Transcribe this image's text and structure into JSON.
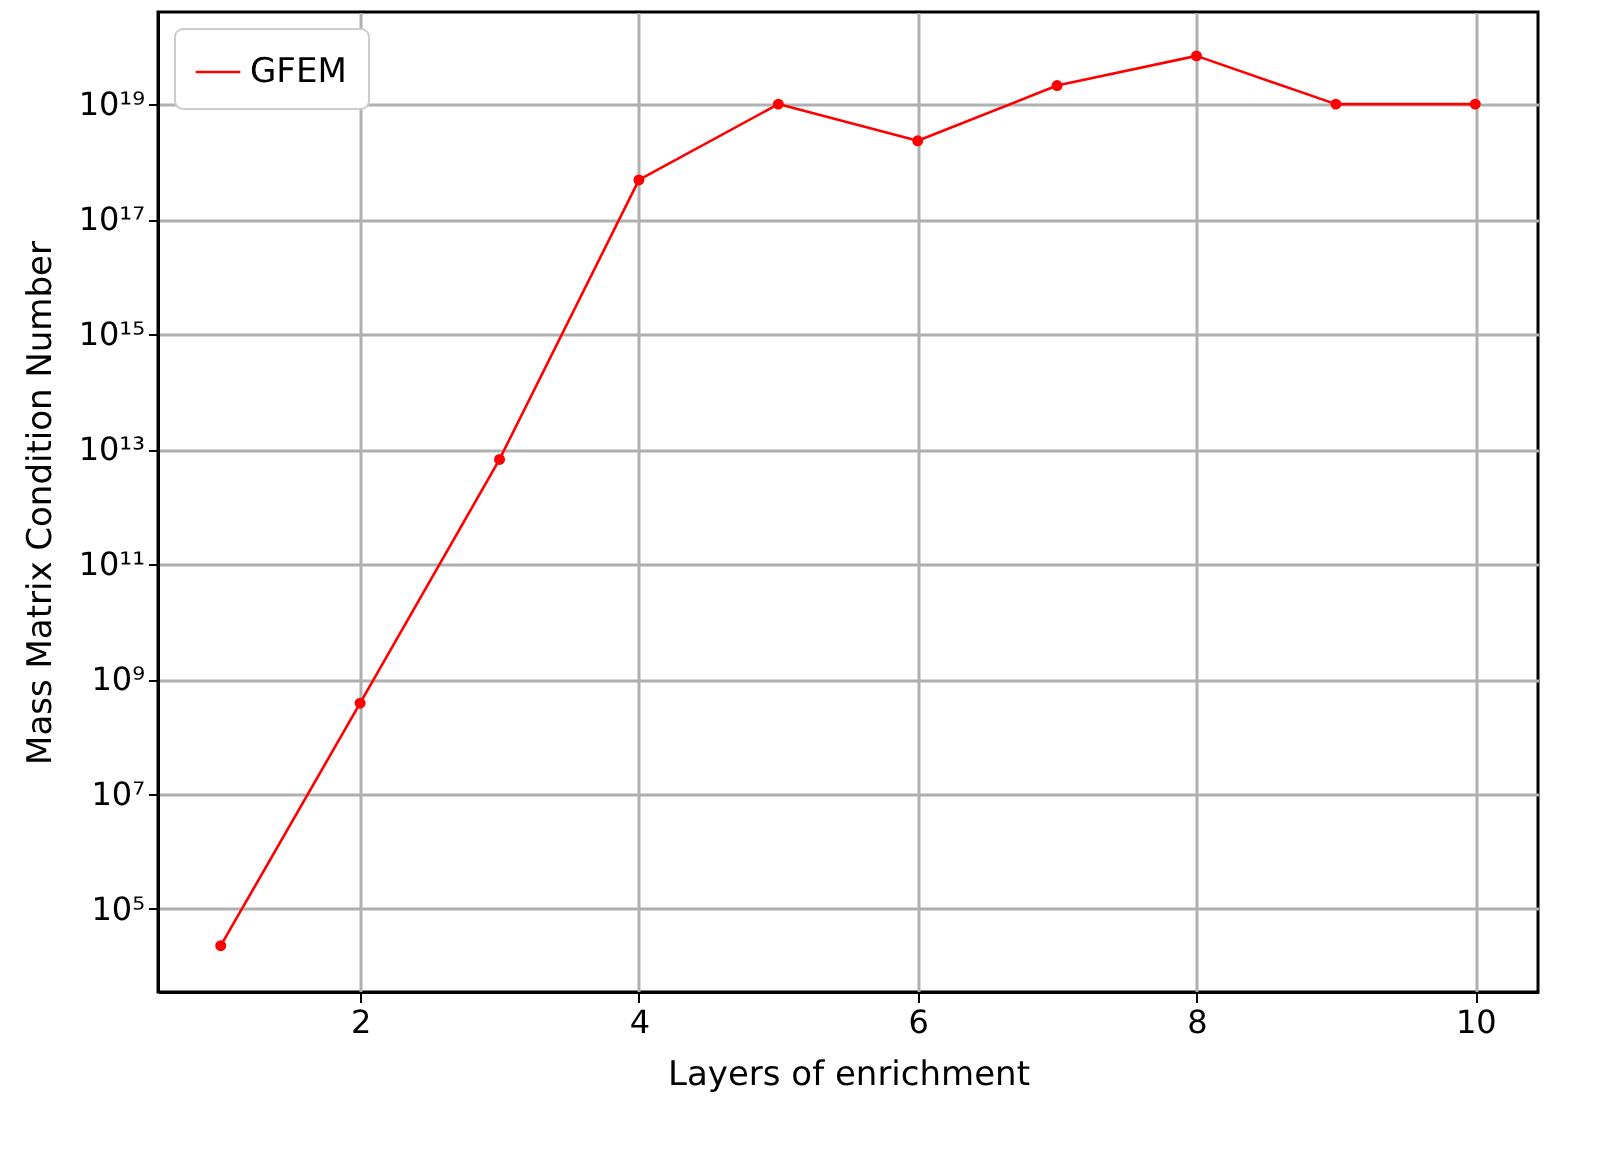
{
  "chart_data": {
    "type": "line",
    "xlabel": "Layers of enrichment",
    "ylabel": "Mass Matrix Condition Number",
    "x": [
      1,
      2,
      3,
      4,
      5,
      6,
      7,
      8,
      9,
      10
    ],
    "series": [
      {
        "name": "GFEM",
        "color": "#ff0000",
        "values": [
          23000.0,
          380000000.0,
          6600000000000.0,
          4.8e+17,
          1e+19,
          2.3e+18,
          2.1e+19,
          6.9e+19,
          1e+19,
          1e+19
        ]
      }
    ],
    "log": "y",
    "xlim": [
      0.55,
      10.45
    ],
    "ylim": [
      3600.0,
      4e+20
    ],
    "xticks": [
      2,
      4,
      6,
      8,
      10
    ],
    "yticks": [
      {
        "value": 100000.0,
        "label": "10⁵"
      },
      {
        "value": 10000000.0,
        "label": "10⁷"
      },
      {
        "value": 1000000000.0,
        "label": "10⁹"
      },
      {
        "value": 100000000000.0,
        "label": "10¹¹"
      },
      {
        "value": 10000000000000.0,
        "label": "10¹³"
      },
      {
        "value": 1000000000000000.0,
        "label": "10¹⁵"
      },
      {
        "value": 1e+17,
        "label": "10¹⁷"
      },
      {
        "value": 1e+19,
        "label": "10¹⁹"
      }
    ],
    "grid": true,
    "legend": "top left",
    "marker": "circle",
    "line_style": "solid"
  }
}
